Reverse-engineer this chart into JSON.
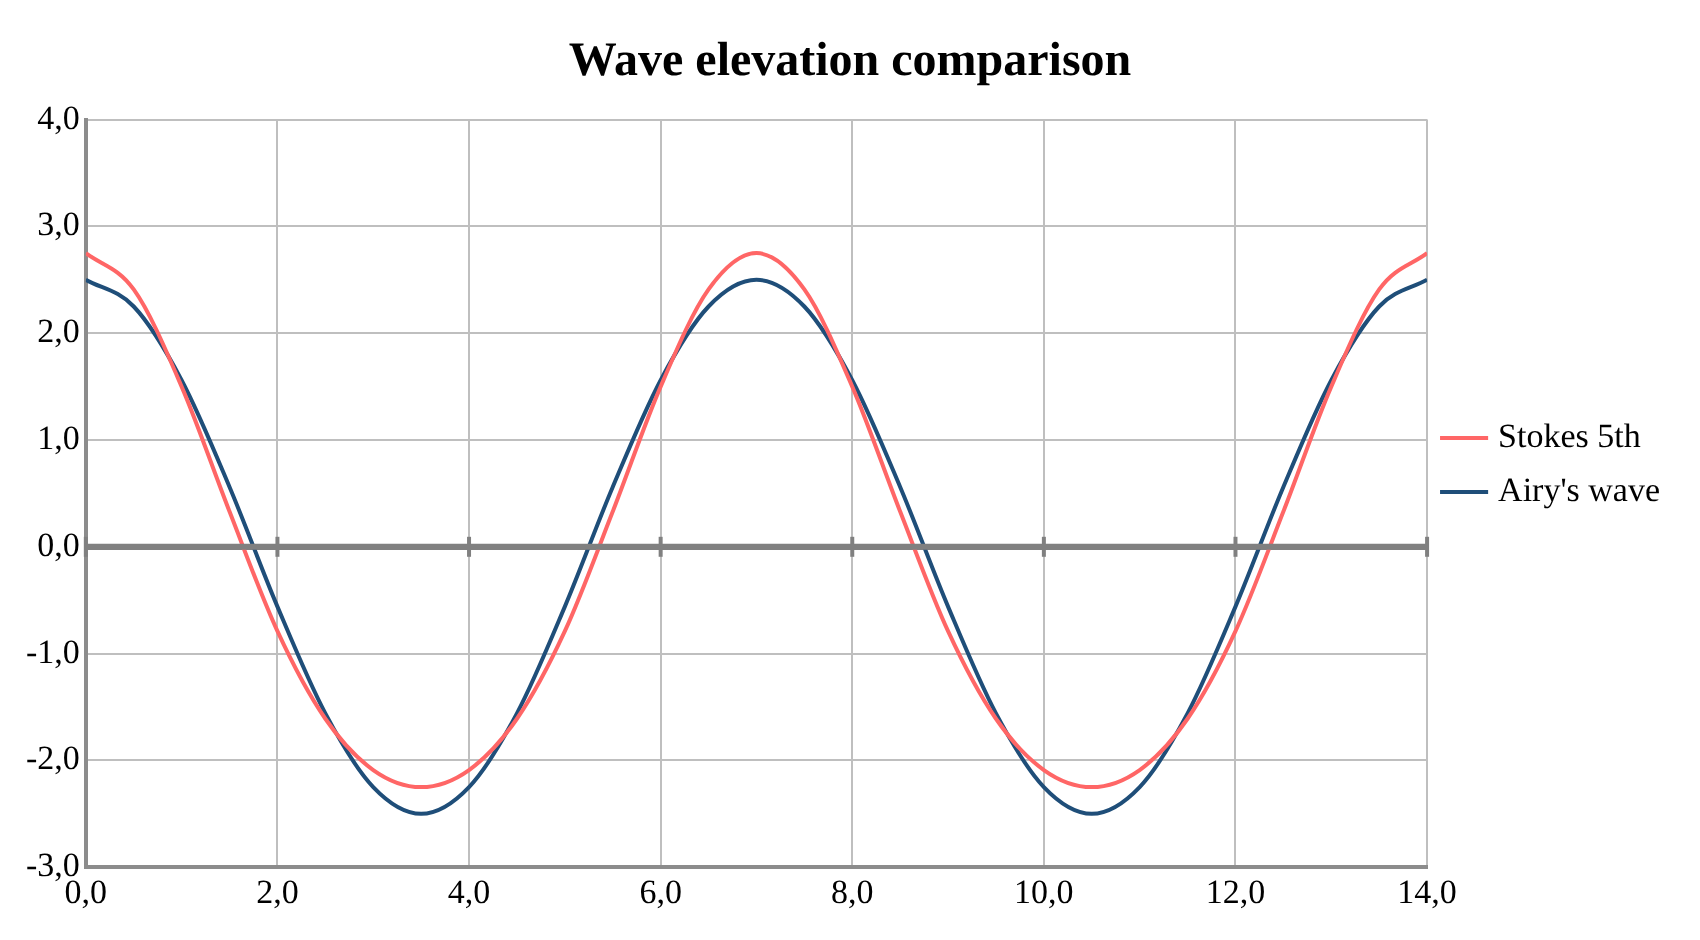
{
  "chart_data": {
    "type": "line",
    "title": "Wave elevation comparison",
    "x": [
      0,
      0.5,
      1,
      1.5,
      2,
      2.5,
      3,
      3.5,
      4,
      4.5,
      5,
      5.5,
      6,
      6.5,
      7,
      7.5,
      8,
      8.5,
      9,
      9.5,
      10,
      10.5,
      11,
      11.5,
      12,
      12.5,
      13,
      13.5,
      14
    ],
    "series": [
      {
        "name": "Stokes 5th",
        "color": "#ff6666",
        "values": [
          2.75,
          2.41,
          1.5,
          0.33,
          -0.79,
          -1.61,
          -2.09,
          -2.25,
          -2.09,
          -1.61,
          -0.79,
          0.33,
          1.5,
          2.41,
          2.75,
          2.41,
          1.5,
          0.33,
          -0.79,
          -1.61,
          -2.09,
          -2.25,
          -2.09,
          -1.61,
          -0.79,
          0.33,
          1.5,
          2.41,
          2.75
        ]
      },
      {
        "name": "Airy's wave",
        "color": "#1f4e79",
        "values": [
          2.5,
          2.25,
          1.56,
          0.56,
          -0.56,
          -1.56,
          -2.25,
          -2.5,
          -2.25,
          -1.56,
          -0.56,
          0.56,
          1.56,
          2.25,
          2.5,
          2.25,
          1.56,
          0.56,
          -0.56,
          -1.56,
          -2.25,
          -2.5,
          -2.25,
          -1.56,
          -0.56,
          0.56,
          1.56,
          2.25,
          2.5
        ]
      }
    ],
    "xlim": [
      0,
      14
    ],
    "ylim": [
      -3,
      4
    ],
    "xticks": [
      {
        "value": 0,
        "label": "0,0"
      },
      {
        "value": 2,
        "label": "2,0"
      },
      {
        "value": 4,
        "label": "4,0"
      },
      {
        "value": 6,
        "label": "6,0"
      },
      {
        "value": 8,
        "label": "8,0"
      },
      {
        "value": 10,
        "label": "10,0"
      },
      {
        "value": 12,
        "label": "12,0"
      },
      {
        "value": 14,
        "label": "14,0"
      }
    ],
    "yticks": [
      {
        "value": -3,
        "label": "-3,0"
      },
      {
        "value": -2,
        "label": "-2,0"
      },
      {
        "value": -1,
        "label": "-1,0"
      },
      {
        "value": 0,
        "label": "0,0"
      },
      {
        "value": 1,
        "label": "1,0"
      },
      {
        "value": 2,
        "label": "2,0"
      },
      {
        "value": 3,
        "label": "3,0"
      },
      {
        "value": 4,
        "label": "4,0"
      }
    ],
    "grid": true,
    "legend": "right",
    "marker": "none",
    "line_style": "solid"
  }
}
